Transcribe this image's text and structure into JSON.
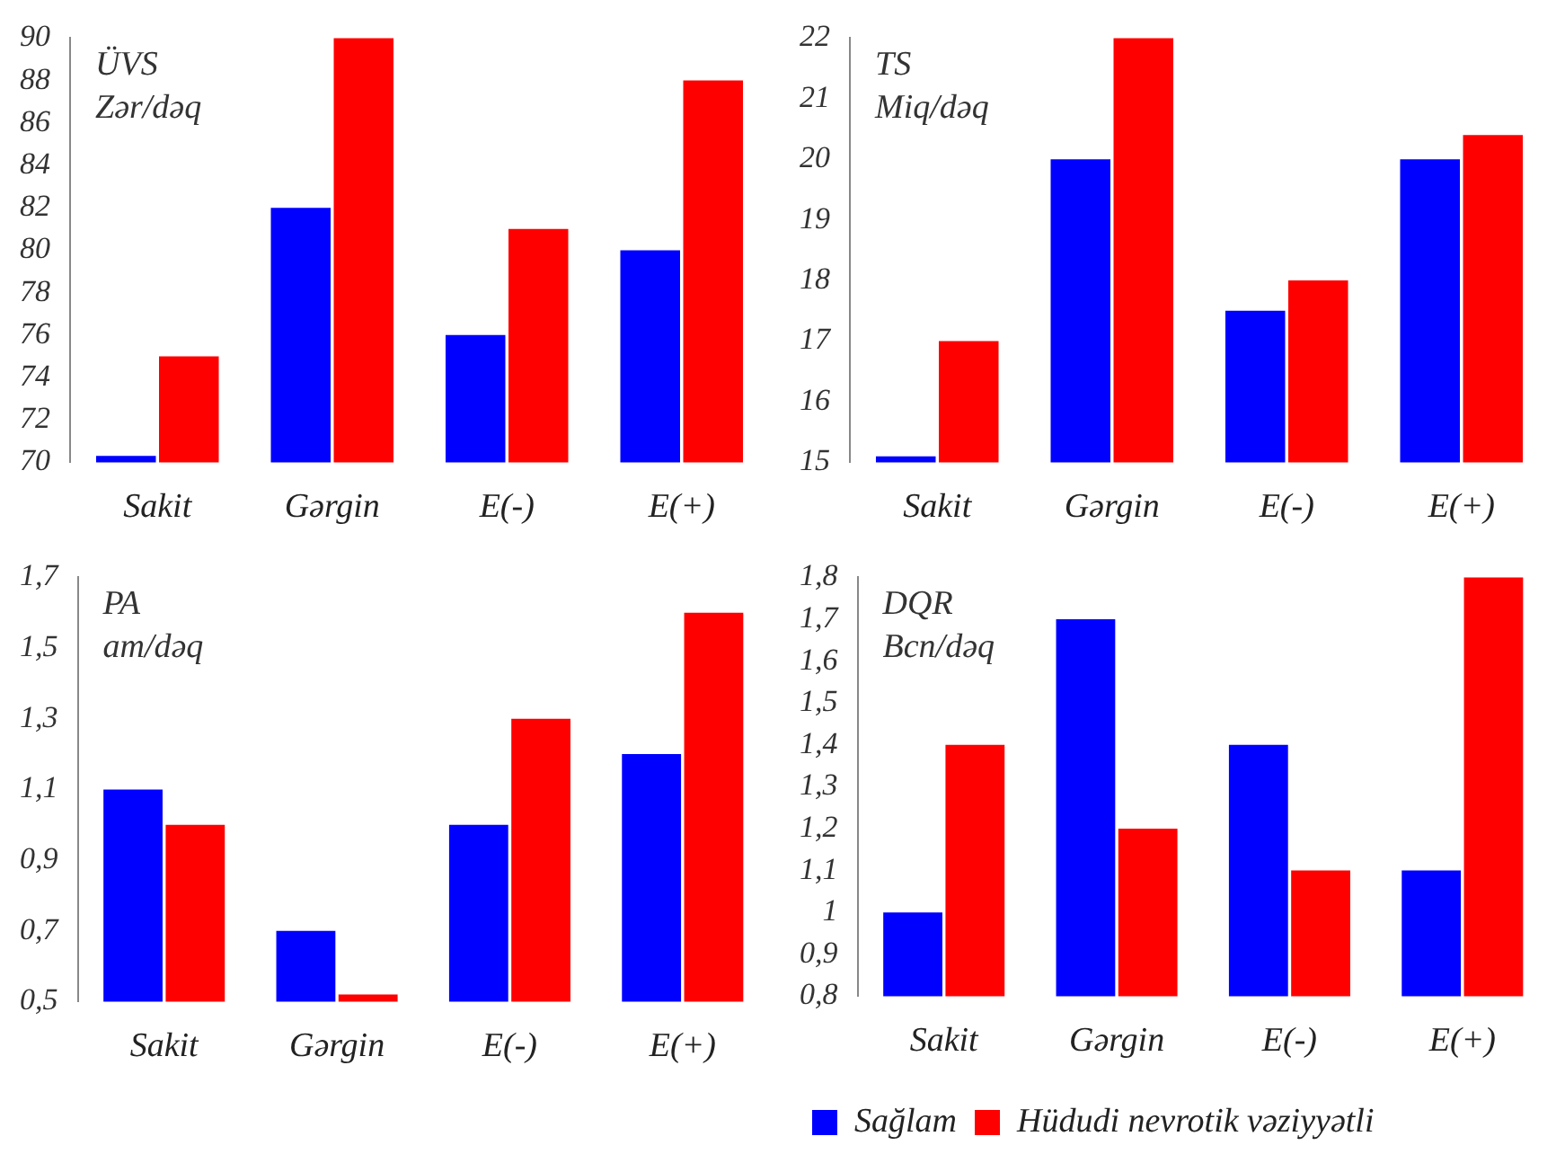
{
  "chart_data": [
    {
      "type": "bar",
      "title": "ÜVS",
      "subtitle": "Zər/dəq",
      "categories": [
        "Sakit",
        "Gərgin",
        "E(-)",
        "E(+)"
      ],
      "series": [
        {
          "color": "#0000ff",
          "values": [
            70.3,
            82,
            76,
            80
          ]
        },
        {
          "color": "#ff0000",
          "values": [
            75,
            90,
            81,
            88
          ]
        }
      ],
      "ylim": [
        70,
        90
      ],
      "yticks": [
        70,
        72,
        74,
        76,
        78,
        80,
        82,
        84,
        86,
        88,
        90
      ],
      "grid": false
    },
    {
      "type": "bar",
      "title": "TS",
      "subtitle": "Miq/dəq",
      "categories": [
        "Sakit",
        "Gərgin",
        "E(-)",
        "E(+)"
      ],
      "series": [
        {
          "color": "#0000ff",
          "values": [
            15.1,
            20,
            17.5,
            20
          ]
        },
        {
          "color": "#ff0000",
          "values": [
            17,
            22,
            18,
            20.4
          ]
        }
      ],
      "ylim": [
        15,
        22
      ],
      "yticks": [
        15,
        16,
        17,
        18,
        19,
        20,
        21,
        22
      ],
      "grid": false
    },
    {
      "type": "bar",
      "title": "PA",
      "subtitle": "am/dəq",
      "categories": [
        "Sakit",
        "Gərgin",
        "E(-)",
        "E(+)"
      ],
      "series": [
        {
          "color": "#0000ff",
          "values": [
            1.1,
            0.7,
            1.0,
            1.2
          ]
        },
        {
          "color": "#ff0000",
          "values": [
            1.0,
            0.52,
            1.3,
            1.6
          ]
        }
      ],
      "ylim": [
        0.5,
        1.7
      ],
      "yticks": [
        {
          "value": 0.5,
          "label": "0,5"
        },
        {
          "value": 0.7,
          "label": "0,7"
        },
        {
          "value": 0.9,
          "label": "0,9"
        },
        {
          "value": 1.1,
          "label": "1,1"
        },
        {
          "value": 1.3,
          "label": "1,3"
        },
        {
          "value": 1.5,
          "label": "1,5"
        },
        {
          "value": 1.7,
          "label": "1,7"
        }
      ],
      "grid": false
    },
    {
      "type": "bar",
      "title": "DQR",
      "subtitle": "Bcn/dəq",
      "categories": [
        "Sakit",
        "Gərgin",
        "E(-)",
        "E(+)"
      ],
      "series": [
        {
          "name": "Sağlam",
          "color": "#0000ff",
          "values": [
            1.0,
            1.7,
            1.4,
            1.1
          ]
        },
        {
          "name": "Hüdudi nevrotik vəziyyətli",
          "color": "#ff0000",
          "values": [
            1.4,
            1.2,
            1.1,
            1.8
          ]
        }
      ],
      "ylim": [
        0.8,
        1.8
      ],
      "yticks": [
        {
          "value": 0.8,
          "label": "0,8"
        },
        {
          "value": 0.9,
          "label": "0,9"
        },
        1,
        {
          "value": 1.1,
          "label": "1,1"
        },
        {
          "value": 1.2,
          "label": "1,2"
        },
        {
          "value": 1.3,
          "label": "1,3"
        },
        {
          "value": 1.4,
          "label": "1,4"
        },
        {
          "value": 1.5,
          "label": "1,5"
        },
        {
          "value": 1.6,
          "label": "1,6"
        },
        {
          "value": 1.7,
          "label": "1,7"
        },
        {
          "value": 1.8,
          "label": "1,8"
        }
      ],
      "grid": false,
      "legend": "bottom"
    }
  ]
}
